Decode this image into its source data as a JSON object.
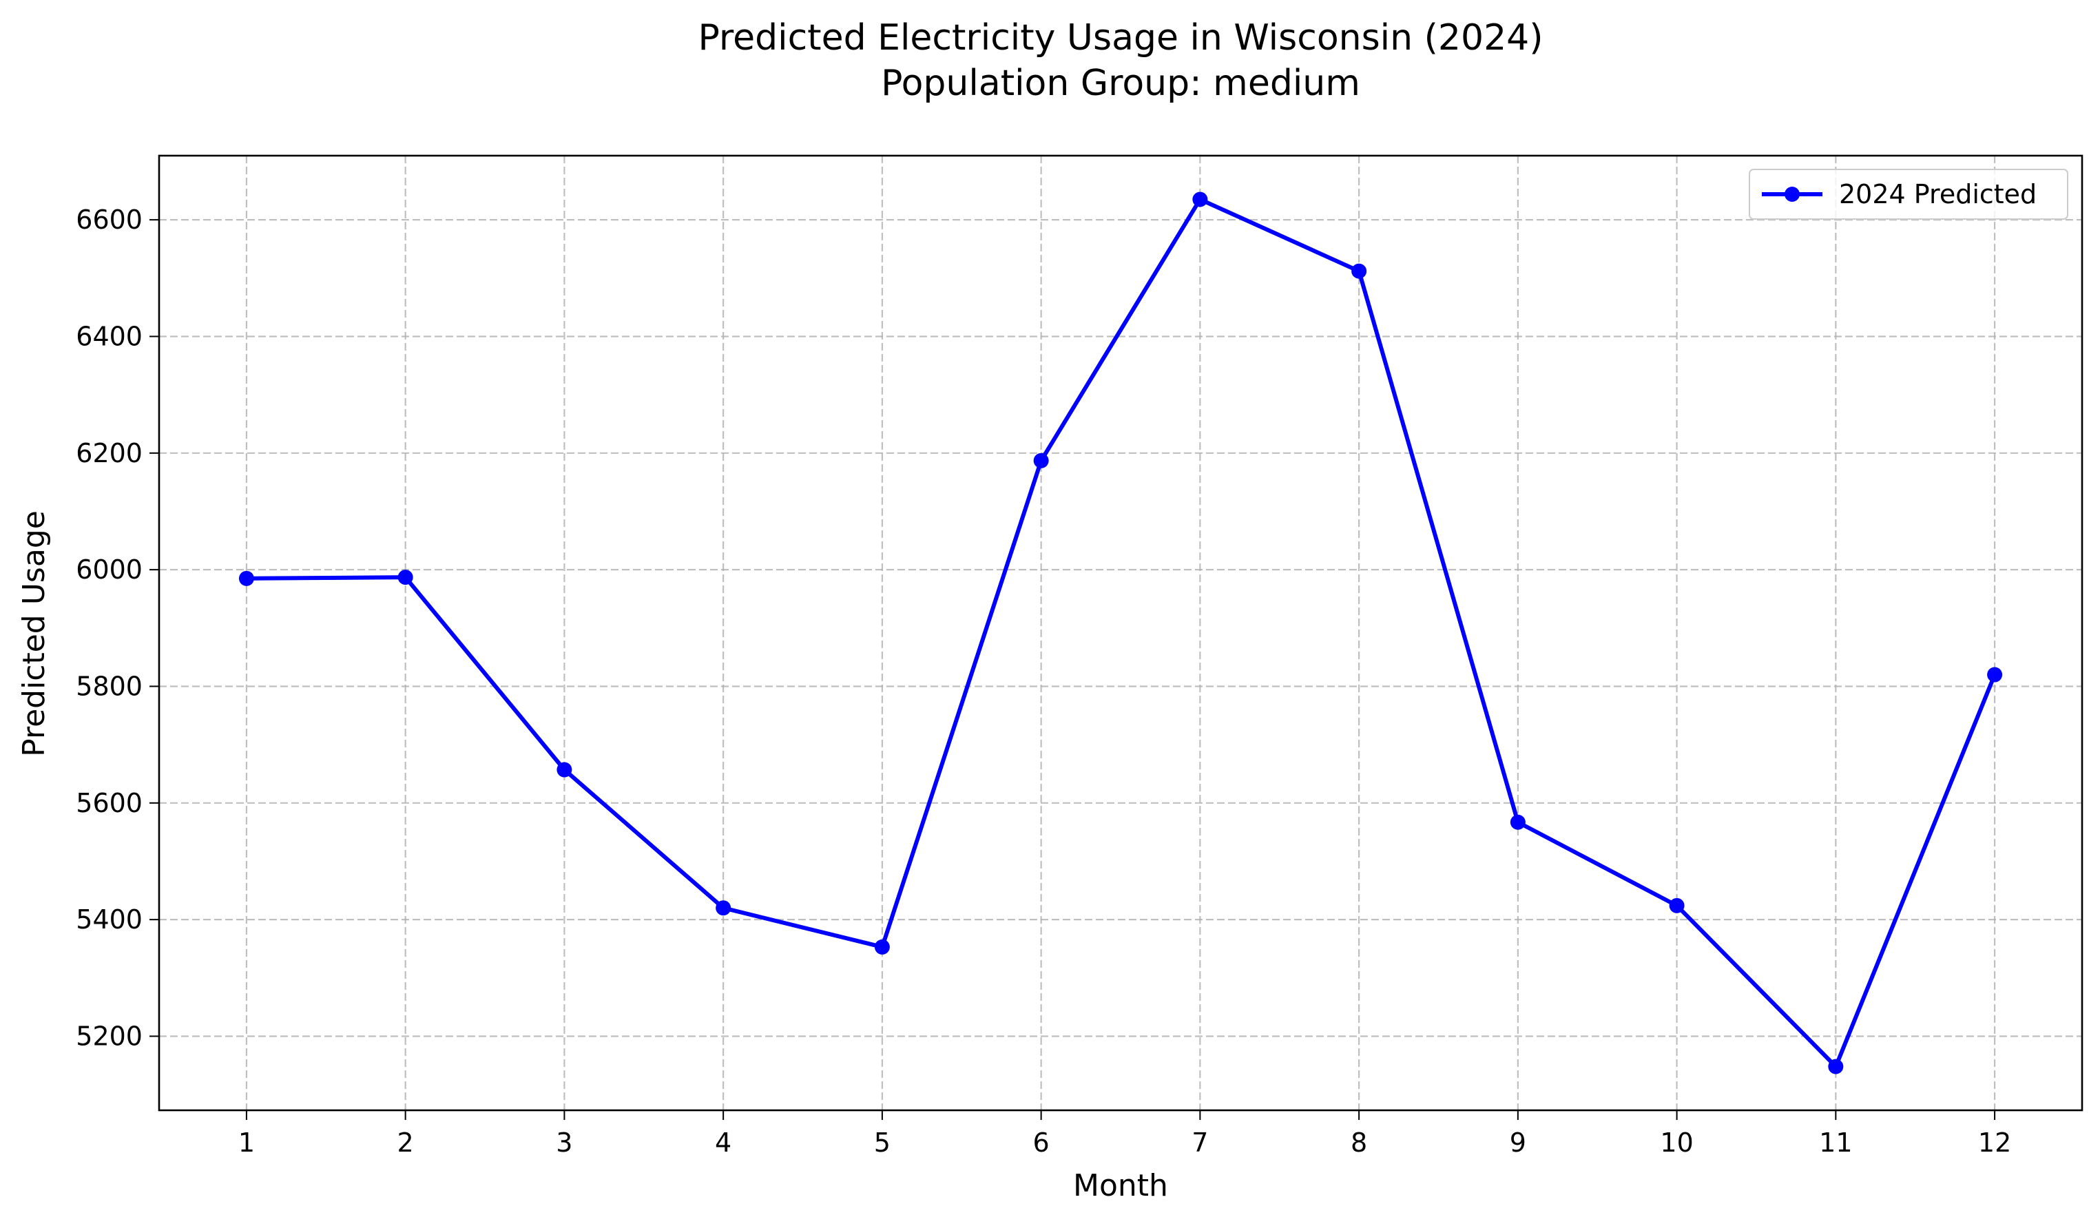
{
  "chart_data": {
    "type": "line",
    "title": "Predicted Electricity Usage in Wisconsin (2024)",
    "subtitle": "Population Group: medium",
    "xlabel": "Month",
    "ylabel": "Predicted Usage",
    "x": [
      1,
      2,
      3,
      4,
      5,
      6,
      7,
      8,
      9,
      10,
      11,
      12
    ],
    "xticks": [
      "1",
      "2",
      "3",
      "4",
      "5",
      "6",
      "7",
      "8",
      "9",
      "10",
      "11",
      "12"
    ],
    "yticks": [
      "5200",
      "5400",
      "5600",
      "5800",
      "6000",
      "6200",
      "6400",
      "6600"
    ],
    "ytick_values": [
      5200,
      5400,
      5600,
      5800,
      6000,
      6200,
      6400,
      6600
    ],
    "xlim": [
      0.45,
      12.55
    ],
    "ylim": [
      5073,
      6710
    ],
    "grid": true,
    "legend_position": "top-right",
    "series": [
      {
        "name": "2024 Predicted",
        "color": "#0000ff",
        "marker": "circle",
        "values": [
          5985,
          5987,
          5657,
          5420,
          5353,
          6187,
          6635,
          6512,
          5567,
          5424,
          5148,
          5820
        ]
      }
    ]
  }
}
